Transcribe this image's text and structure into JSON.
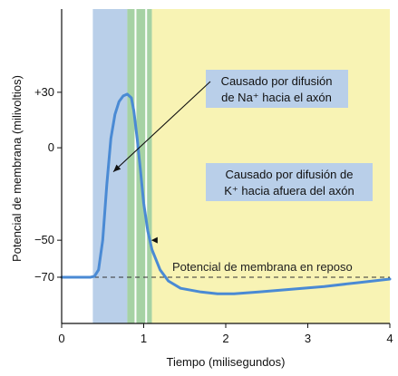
{
  "chart_data": {
    "type": "line",
    "title": "",
    "xlabel": "Tiempo (milisegundos)",
    "ylabel": "Potencial de membrana (milivoltios)",
    "xlim": [
      0,
      4
    ],
    "ylim": [
      -95,
      75
    ],
    "x_ticks": [
      "0",
      "1",
      "2",
      "3",
      "4"
    ],
    "y_ticks": [
      {
        "value": 30,
        "label": "+30"
      },
      {
        "value": 0,
        "label": "0"
      },
      {
        "value": -50,
        "label": "−50"
      },
      {
        "value": -70,
        "label": "−70"
      }
    ],
    "bands": [
      {
        "from": 0.38,
        "to": 0.8,
        "color": "#b9cfe9"
      },
      {
        "from": 0.8,
        "to": 1.1,
        "color": "#a6d2a4"
      },
      {
        "from": 1.1,
        "to": 4.0,
        "color": "#f8f3b4"
      }
    ],
    "band_lines": [
      0.9,
      1.03
    ],
    "reference_line": {
      "y": -70,
      "label": "Potencial de membrana en reposo"
    },
    "series": [
      {
        "color": "#4a8ad4",
        "points": [
          [
            0.0,
            -70
          ],
          [
            0.35,
            -70
          ],
          [
            0.4,
            -69.5
          ],
          [
            0.45,
            -66
          ],
          [
            0.5,
            -50
          ],
          [
            0.55,
            -20
          ],
          [
            0.6,
            5
          ],
          [
            0.65,
            18
          ],
          [
            0.7,
            25
          ],
          [
            0.75,
            28
          ],
          [
            0.8,
            29
          ],
          [
            0.85,
            27
          ],
          [
            0.88,
            20
          ],
          [
            0.92,
            5
          ],
          [
            0.96,
            -12
          ],
          [
            1.0,
            -30
          ],
          [
            1.05,
            -45
          ],
          [
            1.1,
            -55
          ],
          [
            1.2,
            -66
          ],
          [
            1.3,
            -72
          ],
          [
            1.45,
            -76
          ],
          [
            1.7,
            -78
          ],
          [
            1.9,
            -79
          ],
          [
            2.1,
            -79
          ],
          [
            2.4,
            -78
          ],
          [
            2.8,
            -76.5
          ],
          [
            3.2,
            -75
          ],
          [
            3.6,
            -73
          ],
          [
            4.0,
            -71
          ]
        ]
      }
    ],
    "annotations": [
      {
        "lines": [
          "Causado por difusión",
          "de Na⁺ hacia el axón"
        ],
        "arrow_to": [
          0.63,
          -13
        ]
      },
      {
        "lines": [
          "Causado por difusión de",
          "K⁺ hacia afuera del axón"
        ],
        "arrow_to": [
          1.07,
          -50
        ]
      }
    ]
  }
}
